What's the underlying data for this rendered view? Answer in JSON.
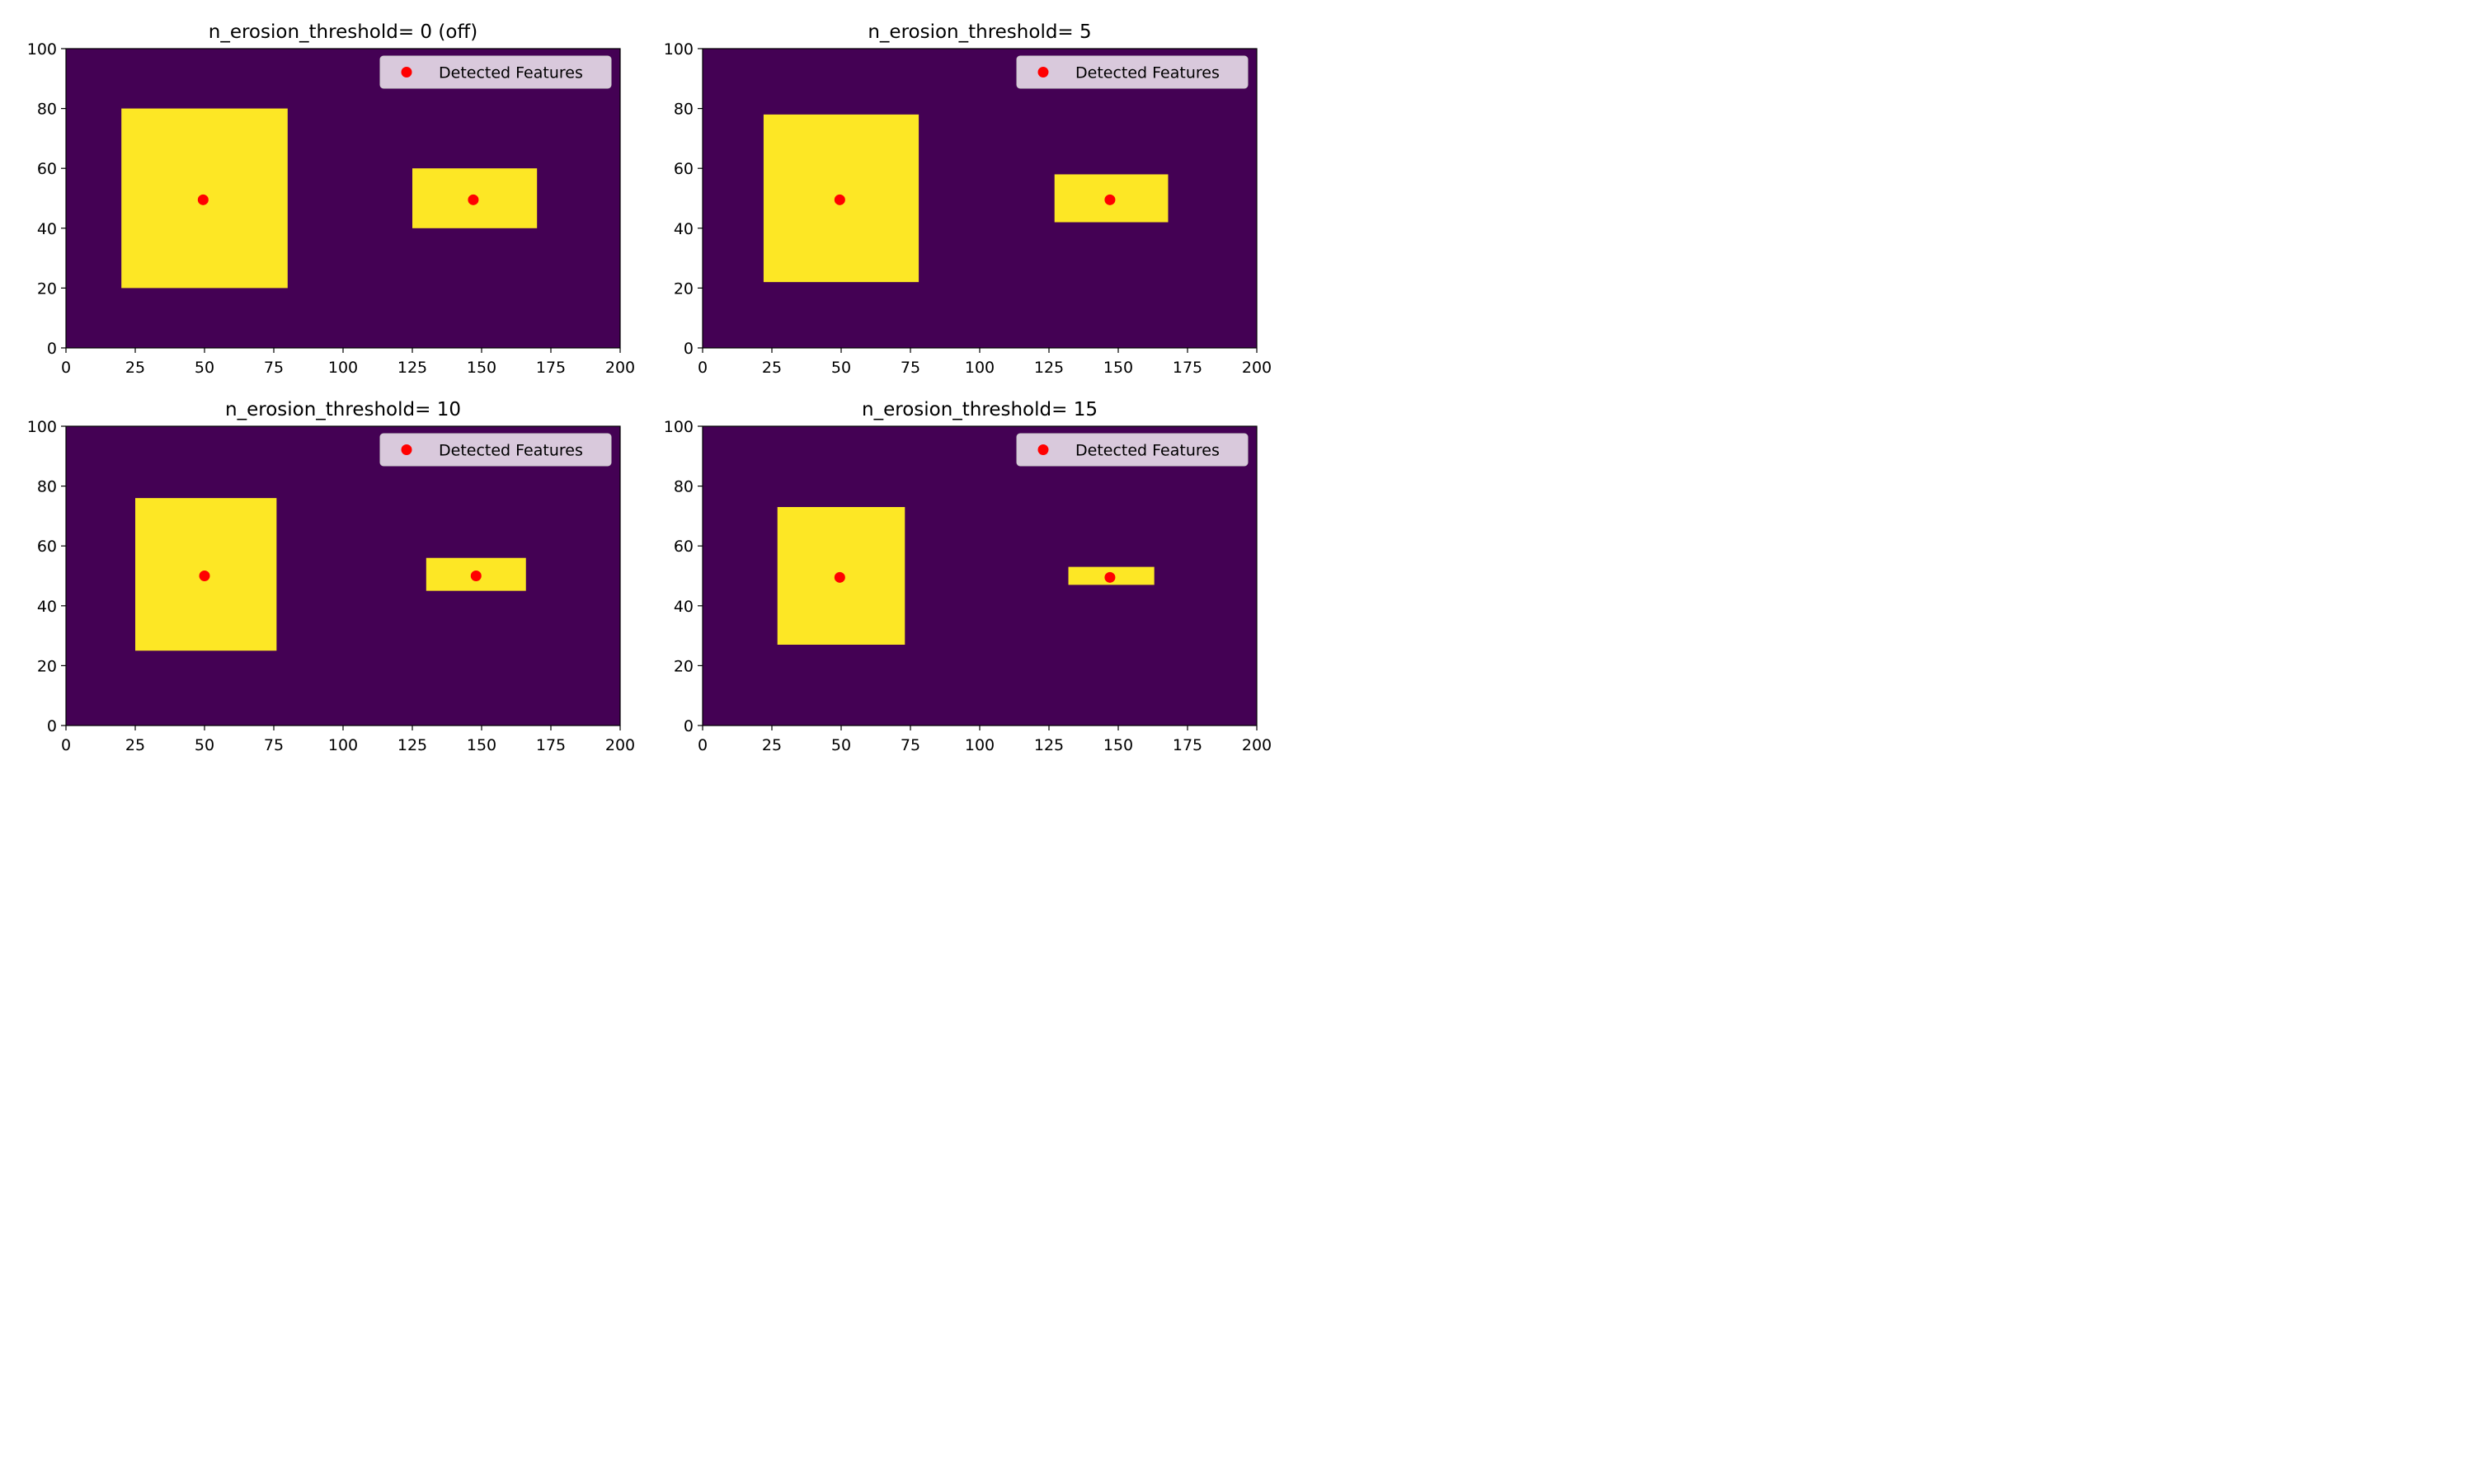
{
  "figure": {
    "subplots": 4,
    "legend_label": "Detected Features",
    "legend_marker": "red-dot-marker"
  },
  "colors": {
    "background": "#440154",
    "feature": "#fde725",
    "marker": "#ff0000",
    "legend_bg": "#d9c9dc"
  },
  "chart_data": [
    {
      "type": "heatmap",
      "title": "n_erosion_threshold= 0 (off)",
      "xlim": [
        0,
        200
      ],
      "ylim": [
        0,
        100
      ],
      "xticks": [
        "0",
        "25",
        "50",
        "75",
        "100",
        "125",
        "150",
        "175",
        "200"
      ],
      "yticks": [
        "0",
        "20",
        "40",
        "60",
        "80",
        "100"
      ],
      "xlabel": "",
      "ylabel": "",
      "grid": false,
      "legend": {
        "position": "top-right",
        "entries": [
          "Detected Features"
        ]
      },
      "features": [
        {
          "x0": 20,
          "x1": 80,
          "y0": 20,
          "y1": 80
        },
        {
          "x0": 125,
          "x1": 170,
          "y0": 40,
          "y1": 60
        }
      ],
      "points": [
        {
          "x": 49.5,
          "y": 49.5
        },
        {
          "x": 147,
          "y": 49.5
        }
      ]
    },
    {
      "type": "heatmap",
      "title": "n_erosion_threshold= 5",
      "xlim": [
        0,
        200
      ],
      "ylim": [
        0,
        100
      ],
      "xticks": [
        "0",
        "25",
        "50",
        "75",
        "100",
        "125",
        "150",
        "175",
        "200"
      ],
      "yticks": [
        "0",
        "20",
        "40",
        "60",
        "80",
        "100"
      ],
      "xlabel": "",
      "ylabel": "",
      "grid": false,
      "legend": {
        "position": "top-right",
        "entries": [
          "Detected Features"
        ]
      },
      "features": [
        {
          "x0": 22,
          "x1": 78,
          "y0": 22,
          "y1": 78
        },
        {
          "x0": 127,
          "x1": 168,
          "y0": 42,
          "y1": 58
        }
      ],
      "points": [
        {
          "x": 49.5,
          "y": 49.5
        },
        {
          "x": 147,
          "y": 49.5
        }
      ]
    },
    {
      "type": "heatmap",
      "title": "n_erosion_threshold= 10",
      "xlim": [
        0,
        200
      ],
      "ylim": [
        0,
        100
      ],
      "xticks": [
        "0",
        "25",
        "50",
        "75",
        "100",
        "125",
        "150",
        "175",
        "200"
      ],
      "yticks": [
        "0",
        "20",
        "40",
        "60",
        "80",
        "100"
      ],
      "xlabel": "",
      "ylabel": "",
      "grid": false,
      "legend": {
        "position": "top-right",
        "entries": [
          "Detected Features"
        ]
      },
      "features": [
        {
          "x0": 25,
          "x1": 76,
          "y0": 25,
          "y1": 76
        },
        {
          "x0": 130,
          "x1": 166,
          "y0": 45,
          "y1": 56
        }
      ],
      "points": [
        {
          "x": 50,
          "y": 50
        },
        {
          "x": 148,
          "y": 50
        }
      ]
    },
    {
      "type": "heatmap",
      "title": "n_erosion_threshold= 15",
      "xlim": [
        0,
        200
      ],
      "ylim": [
        0,
        100
      ],
      "xticks": [
        "0",
        "25",
        "50",
        "75",
        "100",
        "125",
        "150",
        "175",
        "200"
      ],
      "yticks": [
        "0",
        "20",
        "40",
        "60",
        "80",
        "100"
      ],
      "xlabel": "",
      "ylabel": "",
      "grid": false,
      "legend": {
        "position": "top-right",
        "entries": [
          "Detected Features"
        ]
      },
      "features": [
        {
          "x0": 27,
          "x1": 73,
          "y0": 27,
          "y1": 73
        },
        {
          "x0": 132,
          "x1": 163,
          "y0": 47,
          "y1": 53
        }
      ],
      "points": [
        {
          "x": 49.5,
          "y": 49.5
        },
        {
          "x": 147,
          "y": 49.5
        }
      ]
    }
  ]
}
